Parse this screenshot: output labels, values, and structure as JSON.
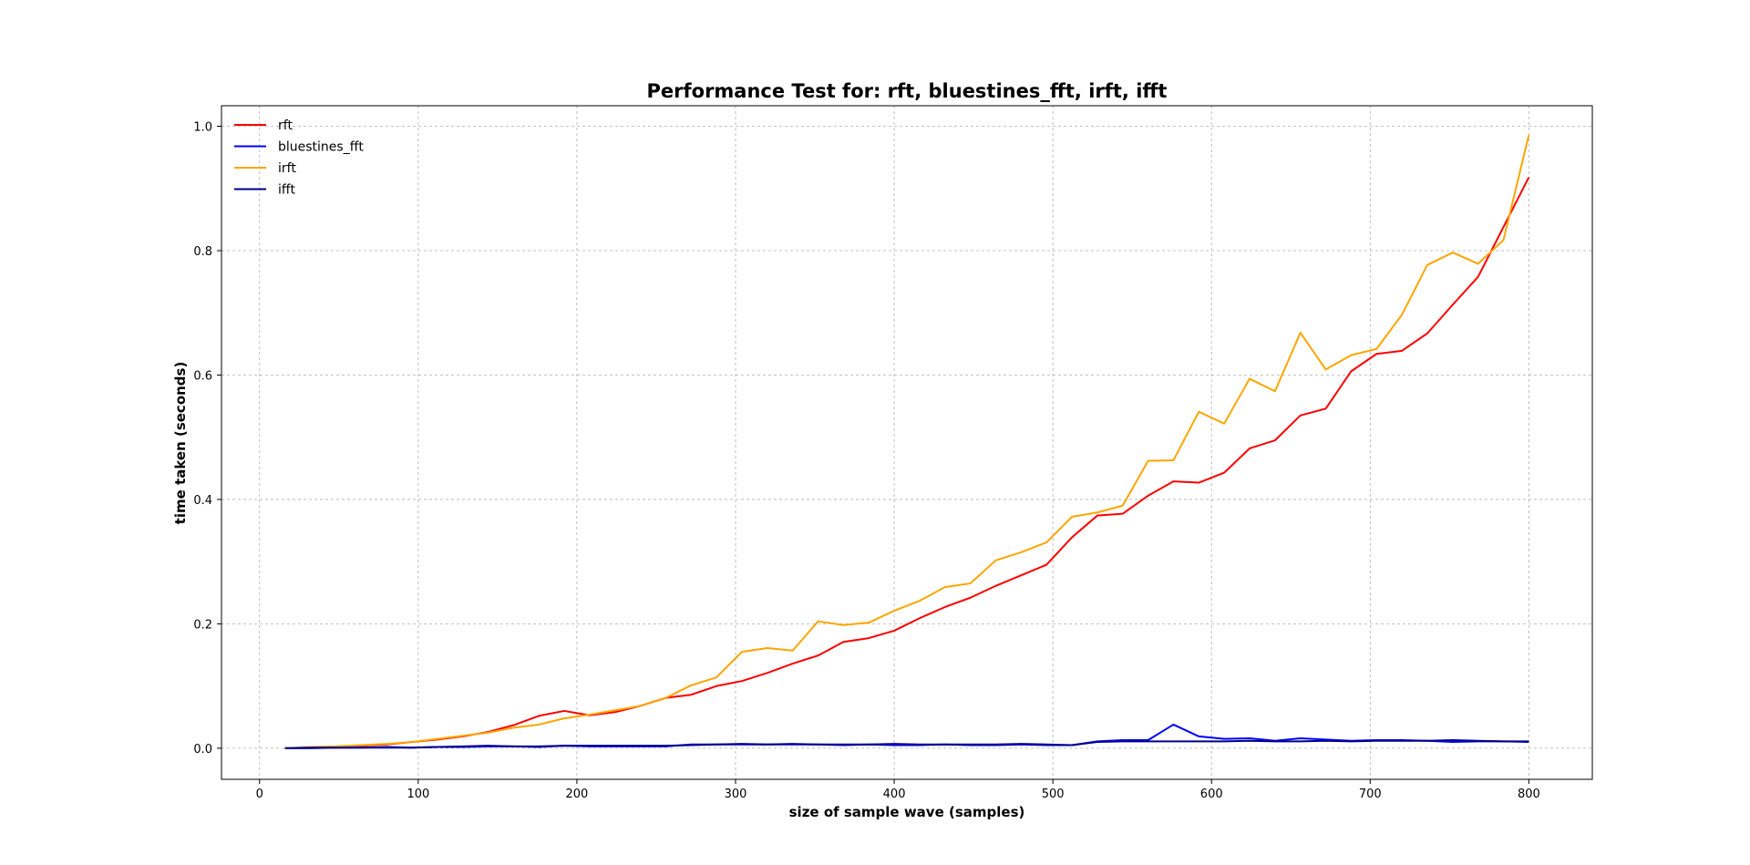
{
  "chart_data": {
    "type": "line",
    "title": "Performance Test for: rft, bluestines_fft, irft, ifft",
    "xlabel": "size of sample wave (samples)",
    "ylabel": "time taken (seconds)",
    "xlim": [
      -24,
      840
    ],
    "ylim": [
      -0.05,
      1.033
    ],
    "xticks": [
      0,
      100,
      200,
      300,
      400,
      500,
      600,
      700,
      800
    ],
    "yticks": [
      0.0,
      0.2,
      0.4,
      0.6,
      0.8,
      1.0
    ],
    "xtick_labels": [
      "0",
      "100",
      "200",
      "300",
      "400",
      "500",
      "600",
      "700",
      "800"
    ],
    "ytick_labels": [
      "0.0",
      "0.2",
      "0.4",
      "0.6",
      "0.8",
      "1.0"
    ],
    "grid": true,
    "legend_position": "top-left",
    "x": [
      16,
      32,
      48,
      64,
      80,
      96,
      112,
      128,
      144,
      160,
      176,
      192,
      208,
      224,
      240,
      256,
      272,
      288,
      304,
      320,
      336,
      352,
      368,
      384,
      400,
      416,
      432,
      448,
      464,
      480,
      496,
      512,
      528,
      544,
      560,
      576,
      592,
      608,
      624,
      640,
      656,
      672,
      688,
      704,
      720,
      736,
      752,
      768,
      784,
      800
    ],
    "series": [
      {
        "name": "rft",
        "color": "#ff0000",
        "values": [
          0.0,
          0.001,
          0.002,
          0.004,
          0.006,
          0.01,
          0.014,
          0.019,
          0.026,
          0.037,
          0.052,
          0.06,
          0.053,
          0.058,
          0.068,
          0.081,
          0.086,
          0.1,
          0.108,
          0.121,
          0.136,
          0.149,
          0.171,
          0.177,
          0.189,
          0.209,
          0.227,
          0.242,
          0.261,
          0.278,
          0.295,
          0.339,
          0.374,
          0.377,
          0.406,
          0.429,
          0.427,
          0.443,
          0.482,
          0.495,
          0.535,
          0.546,
          0.606,
          0.634,
          0.639,
          0.667,
          0.713,
          0.758,
          0.838,
          0.918
        ]
      },
      {
        "name": "bluestines_fft",
        "color": "#0000ff",
        "values": [
          0.0,
          0.0,
          0.001,
          0.001,
          0.001,
          0.001,
          0.002,
          0.002,
          0.003,
          0.003,
          0.002,
          0.004,
          0.003,
          0.003,
          0.003,
          0.003,
          0.006,
          0.006,
          0.006,
          0.006,
          0.006,
          0.006,
          0.005,
          0.006,
          0.005,
          0.005,
          0.006,
          0.005,
          0.005,
          0.006,
          0.005,
          0.005,
          0.011,
          0.013,
          0.013,
          0.038,
          0.019,
          0.015,
          0.016,
          0.012,
          0.016,
          0.014,
          0.012,
          0.013,
          0.013,
          0.012,
          0.01,
          0.011,
          0.011,
          0.01
        ]
      },
      {
        "name": "irft",
        "color": "#ffa500",
        "values": [
          0.0,
          0.002,
          0.003,
          0.005,
          0.007,
          0.01,
          0.015,
          0.02,
          0.025,
          0.033,
          0.038,
          0.048,
          0.054,
          0.061,
          0.068,
          0.081,
          0.101,
          0.114,
          0.155,
          0.161,
          0.157,
          0.204,
          0.198,
          0.202,
          0.221,
          0.237,
          0.259,
          0.265,
          0.302,
          0.315,
          0.331,
          0.372,
          0.379,
          0.39,
          0.462,
          0.463,
          0.541,
          0.522,
          0.594,
          0.574,
          0.668,
          0.609,
          0.632,
          0.642,
          0.697,
          0.777,
          0.797,
          0.779,
          0.817,
          0.986
        ]
      },
      {
        "name": "ifft",
        "color": "#00008b",
        "values": [
          0.0,
          0.001,
          0.001,
          0.001,
          0.002,
          0.001,
          0.002,
          0.003,
          0.004,
          0.003,
          0.003,
          0.004,
          0.004,
          0.004,
          0.004,
          0.004,
          0.005,
          0.006,
          0.007,
          0.006,
          0.007,
          0.006,
          0.006,
          0.006,
          0.007,
          0.006,
          0.006,
          0.006,
          0.006,
          0.007,
          0.006,
          0.005,
          0.01,
          0.011,
          0.011,
          0.011,
          0.011,
          0.011,
          0.012,
          0.011,
          0.011,
          0.012,
          0.011,
          0.012,
          0.012,
          0.012,
          0.013,
          0.012,
          0.011,
          0.011
        ]
      }
    ]
  }
}
